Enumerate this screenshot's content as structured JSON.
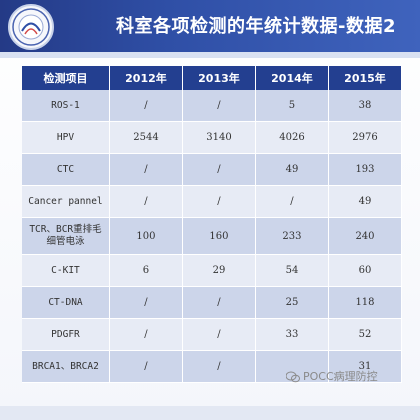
{
  "slide": {
    "title": "科室各项检测的年统计数据-数据2"
  },
  "table": {
    "headers": [
      "检测项目",
      "2012年",
      "2013年",
      "2014年",
      "2015年"
    ],
    "rows": [
      [
        "ROS-1",
        "/",
        "/",
        "5",
        "38"
      ],
      [
        "HPV",
        "2544",
        "3140",
        "4026",
        "2976"
      ],
      [
        "CTC",
        "/",
        "/",
        "49",
        "193"
      ],
      [
        "Cancer pannel",
        "/",
        "/",
        "/",
        "49"
      ],
      [
        "TCR、BCR重排毛细管电泳",
        "100",
        "160",
        "233",
        "240"
      ],
      [
        "C-KIT",
        "6",
        "29",
        "54",
        "60"
      ],
      [
        "CT-DNA",
        "/",
        "/",
        "25",
        "118"
      ],
      [
        "PDGFR",
        "/",
        "/",
        "33",
        "52"
      ],
      [
        "BRCA1、BRCA2",
        "/",
        "/",
        "",
        "31"
      ]
    ]
  },
  "watermark": {
    "text": "POCC病理防控"
  },
  "colors": {
    "header_bg": "#2f4fa6",
    "table_header": "#233f90",
    "row_dark": "#ccd5ea",
    "row_light": "#e7ebf5"
  }
}
